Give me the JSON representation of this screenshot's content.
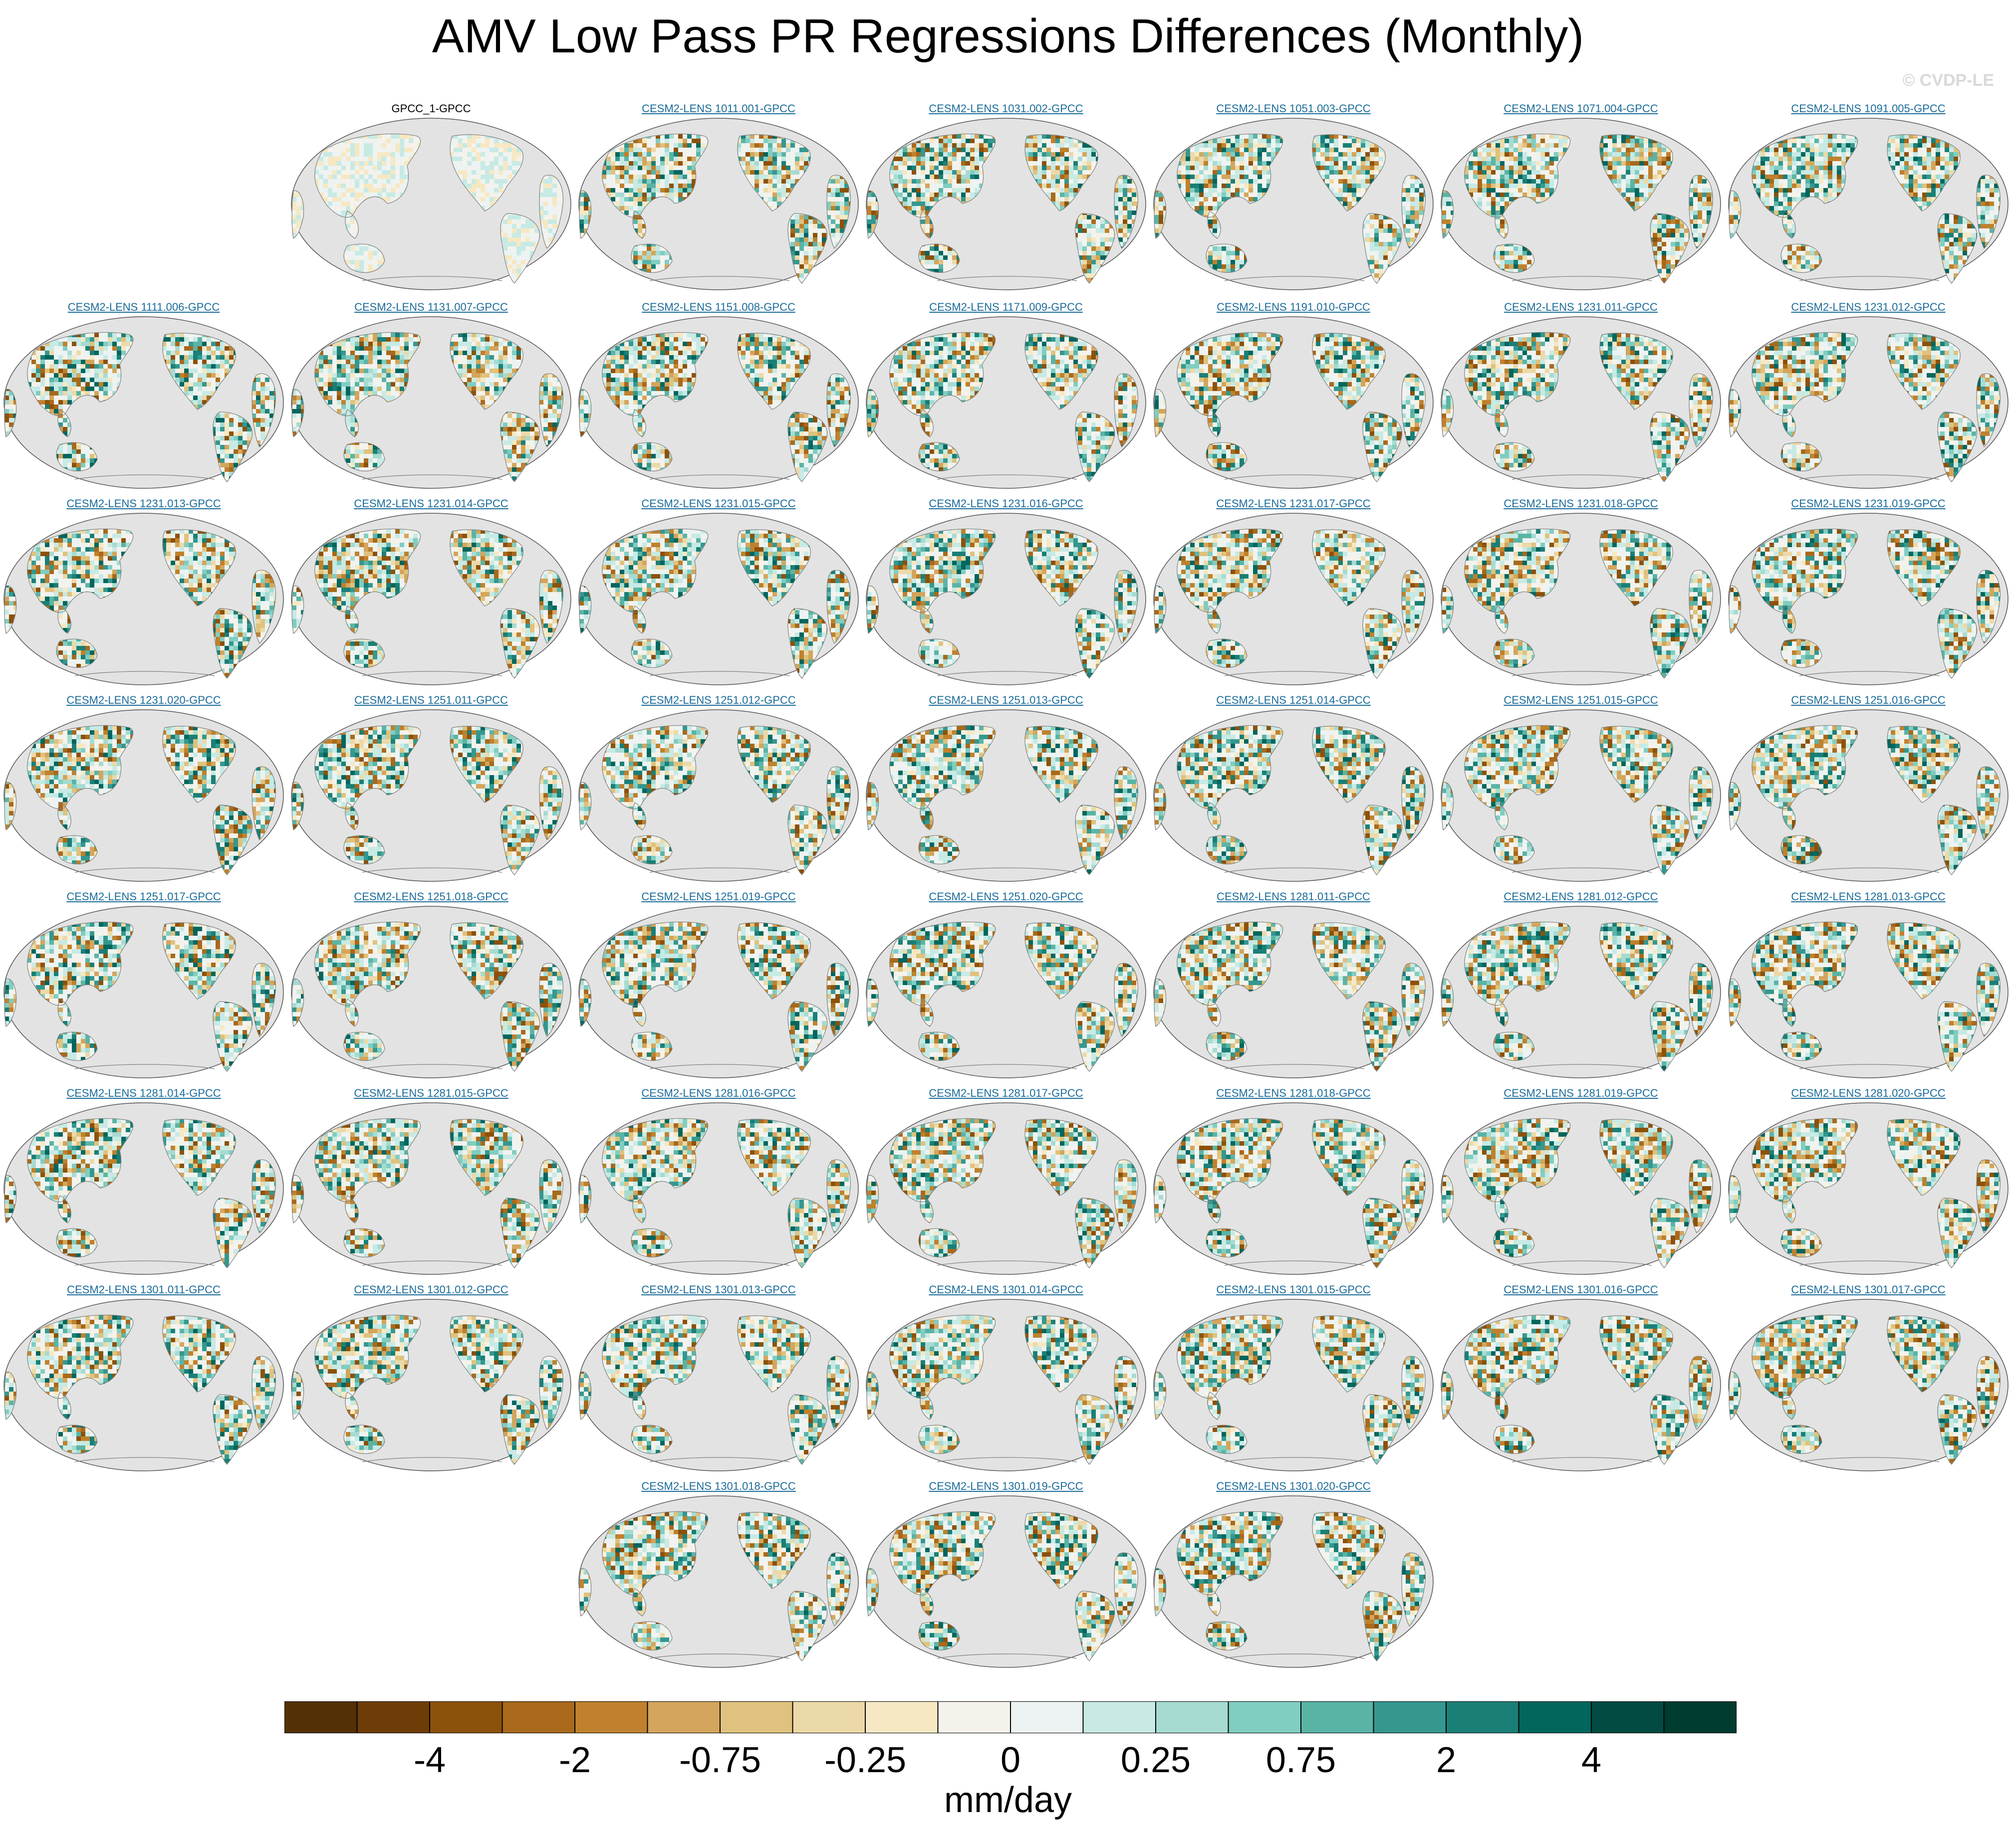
{
  "title": "AMV Low Pass PR Regressions Differences (Monthly)",
  "watermark": "© CVDP-LE",
  "panels": [
    "GPCC_1-GPCC",
    "CESM2-LENS 1011.001-GPCC",
    "CESM2-LENS 1031.002-GPCC",
    "CESM2-LENS 1051.003-GPCC",
    "CESM2-LENS 1071.004-GPCC",
    "CESM2-LENS 1091.005-GPCC",
    "CESM2-LENS 1111.006-GPCC",
    "CESM2-LENS 1131.007-GPCC",
    "CESM2-LENS 1151.008-GPCC",
    "CESM2-LENS 1171.009-GPCC",
    "CESM2-LENS 1191.010-GPCC",
    "CESM2-LENS 1231.011-GPCC",
    "CESM2-LENS 1231.012-GPCC",
    "CESM2-LENS 1231.013-GPCC",
    "CESM2-LENS 1231.014-GPCC",
    "CESM2-LENS 1231.015-GPCC",
    "CESM2-LENS 1231.016-GPCC",
    "CESM2-LENS 1231.017-GPCC",
    "CESM2-LENS 1231.018-GPCC",
    "CESM2-LENS 1231.019-GPCC",
    "CESM2-LENS 1231.020-GPCC",
    "CESM2-LENS 1251.011-GPCC",
    "CESM2-LENS 1251.012-GPCC",
    "CESM2-LENS 1251.013-GPCC",
    "CESM2-LENS 1251.014-GPCC",
    "CESM2-LENS 1251.015-GPCC",
    "CESM2-LENS 1251.016-GPCC",
    "CESM2-LENS 1251.017-GPCC",
    "CESM2-LENS 1251.018-GPCC",
    "CESM2-LENS 1251.019-GPCC",
    "CESM2-LENS 1251.020-GPCC",
    "CESM2-LENS 1281.011-GPCC",
    "CESM2-LENS 1281.012-GPCC",
    "CESM2-LENS 1281.013-GPCC",
    "CESM2-LENS 1281.014-GPCC",
    "CESM2-LENS 1281.015-GPCC",
    "CESM2-LENS 1281.016-GPCC",
    "CESM2-LENS 1281.017-GPCC",
    "CESM2-LENS 1281.018-GPCC",
    "CESM2-LENS 1281.019-GPCC",
    "CESM2-LENS 1281.020-GPCC",
    "CESM2-LENS 1301.011-GPCC",
    "CESM2-LENS 1301.012-GPCC",
    "CESM2-LENS 1301.013-GPCC",
    "CESM2-LENS 1301.014-GPCC",
    "CESM2-LENS 1301.015-GPCC",
    "CESM2-LENS 1301.016-GPCC",
    "CESM2-LENS 1301.017-GPCC",
    "CESM2-LENS 1301.018-GPCC",
    "CESM2-LENS 1301.019-GPCC",
    "CESM2-LENS 1301.020-GPCC"
  ],
  "colorbar": {
    "colors": [
      "#543005",
      "#6e3d07",
      "#8c510a",
      "#a8691b",
      "#bf812d",
      "#d4a55c",
      "#dfc27d",
      "#ecd9a8",
      "#f6e8c3",
      "#f5f2ec",
      "#ecf3f2",
      "#c7eae5",
      "#a6dbd2",
      "#80cdc1",
      "#5ab4a6",
      "#35978f",
      "#1a7f76",
      "#01665e",
      "#014b42",
      "#003c30"
    ],
    "labels": [
      "-4",
      "-2",
      "-0.75",
      "-0.25",
      "0",
      "0.25",
      "0.75",
      "2",
      "4"
    ],
    "units": "mm/day"
  },
  "map": {
    "ocean_color": "#e3e3e3",
    "border_color": "#7f7f7f"
  }
}
